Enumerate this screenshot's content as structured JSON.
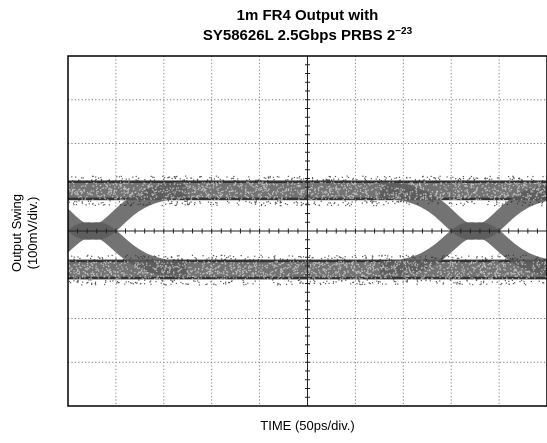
{
  "chart_data": {
    "type": "eye-diagram",
    "title_line1": "1m FR4 Output with",
    "title_line2_prefix": "SY58626L 2.5Gbps PRBS 2",
    "title_line2_superscript": "−23",
    "xlabel": "TIME (50ps/div.)",
    "ylabel_line1": "Output Swing",
    "ylabel_line2": "(100mV/div.)",
    "x_divisions": 10,
    "y_divisions": 8,
    "x_unit_per_div_ps": 50,
    "y_unit_per_div_mV": 100,
    "xlim_ps": [
      0,
      500
    ],
    "ylim_mV": [
      -400,
      400
    ],
    "eye": {
      "high_level_mV": 93,
      "low_level_mV": -88,
      "rail_thickness_mV": 45,
      "crossings_ps": [
        25,
        425
      ],
      "crossing_level_mV": 0
    },
    "grid": true,
    "grid_style": "dotted",
    "colors": {
      "trace": "#5a5a5a",
      "trace_dense": "#2c2c2c",
      "grid": "#777777",
      "frame": "#000000"
    }
  }
}
